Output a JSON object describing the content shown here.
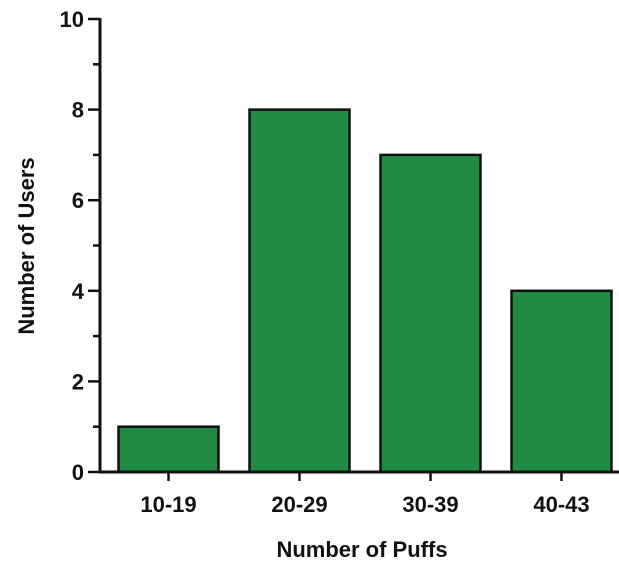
{
  "chart_data": {
    "type": "bar",
    "categories": [
      "10-19",
      "20-29",
      "30-39",
      "40-43"
    ],
    "values": [
      1,
      8,
      7,
      4
    ],
    "title": "",
    "xlabel": "Number of Puffs",
    "ylabel": "Number of Users",
    "ylim": [
      0,
      10
    ],
    "y_ticks": [
      0,
      2,
      4,
      6,
      8,
      10
    ],
    "y_minor_tick_step": 1,
    "grid": false,
    "legend": "none",
    "bar_color": "#228b43",
    "bar_edge_color": "#111111"
  }
}
